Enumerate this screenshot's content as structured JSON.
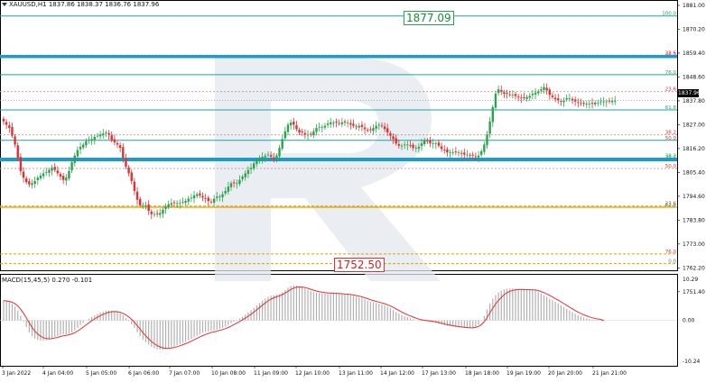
{
  "header": {
    "symbol_label": "XAUUSD,H1",
    "ohlc": "1837.86 1838.37 1836.76 1837.96"
  },
  "price_axis": {
    "ticks": [
      "1881.00",
      "1870.20",
      "1859.40",
      "1848.60",
      "1837.80",
      "1827.00",
      "1816.20",
      "1805.40",
      "1794.60",
      "1783.80",
      "1773.00",
      "1762.20",
      "1751.40"
    ],
    "current_price": "1837.96"
  },
  "macd": {
    "label": "MACD(15,45,5) 0.270 -0.101",
    "ticks": [
      "10.29",
      "0.00",
      "-10.24"
    ]
  },
  "time_axis": {
    "labels": [
      "3 Jan 2022",
      "4 Jan 04:00",
      "5 Jan 05:00",
      "6 Jan 06:00",
      "7 Jan 07:00",
      "10 Jan 08:00",
      "11 Jan 09:00",
      "12 Jan 10:00",
      "13 Jan 11:00",
      "14 Jan 12:00",
      "17 Jan 13:00",
      "18 Jan 18:00",
      "19 Jan 19:00",
      "20 Jan 20:00",
      "21 Jan 21:00"
    ]
  },
  "targets": {
    "up": "1877.09",
    "down": "1752.50"
  },
  "fib_levels": [
    {
      "label": "100.0",
      "color": "#2aa44a"
    },
    {
      "label": "23.6",
      "color": "#e03030"
    },
    {
      "label": "38.2",
      "color": "#e03030"
    },
    {
      "label": "76.0",
      "color": "#2aa44a"
    },
    {
      "label": "23.6",
      "color": "#e03030"
    },
    {
      "label": "61.8",
      "color": "#2aa44a"
    },
    {
      "label": "38.2",
      "color": "#e03030"
    },
    {
      "label": "50.0",
      "color": "#e03030"
    },
    {
      "label": "38.2",
      "color": "#2aa44a"
    },
    {
      "label": "38.2",
      "color": "#2aa44a"
    },
    {
      "label": "50.0",
      "color": "#e03030"
    },
    {
      "label": "23.6",
      "color": "#e03030"
    },
    {
      "label": "61.8",
      "color": "#2aa44a"
    },
    {
      "label": "76.0",
      "color": "#e03030"
    },
    {
      "label": "0.0",
      "color": "#2aa44a"
    }
  ],
  "colors": {
    "bull": "#2aa44a",
    "bear": "#e03030",
    "teal_line": "#1aa5a5",
    "blue_band": "#1c9ad6",
    "orange": "#e0a000",
    "macd_hist": "#b0b0b0",
    "macd_signal": "#e03030"
  },
  "chart_data": [
    {
      "type": "candlestick",
      "title": "XAUUSD,H1",
      "ylim": [
        1747,
        1886
      ],
      "y_ticks": [
        1881.0,
        1870.2,
        1859.4,
        1848.6,
        1837.8,
        1827.0,
        1816.2,
        1805.4,
        1794.6,
        1783.8,
        1773.0,
        1762.2,
        1751.4
      ],
      "close": [
        1828.5,
        1827,
        1825.5,
        1822,
        1818,
        1812,
        1806,
        1803,
        1801,
        1800,
        1800.5,
        1801.5,
        1803,
        1804,
        1805,
        1805.5,
        1806.5,
        1807.5,
        1806.5,
        1805,
        1803.5,
        1802,
        1803,
        1806,
        1810,
        1813,
        1815.5,
        1817,
        1818,
        1819.5,
        1820,
        1820.5,
        1821.5,
        1822,
        1822.5,
        1823,
        1823.5,
        1822.5,
        1820,
        1819,
        1818,
        1816.5,
        1812,
        1808,
        1805,
        1801.5,
        1797,
        1793,
        1790.5,
        1790.5,
        1790.5,
        1788,
        1786.5,
        1786.5,
        1786.5,
        1787,
        1788.5,
        1790,
        1791,
        1791.5,
        1791.5,
        1791.5,
        1791.5,
        1792,
        1792.5,
        1793.5,
        1794,
        1795,
        1795.5,
        1795,
        1794,
        1793.5,
        1792.5,
        1792,
        1793.5,
        1794.5,
        1794.5,
        1795.5,
        1797,
        1799,
        1800.5,
        1800.5,
        1800.5,
        1802,
        1803.5,
        1805,
        1806.5,
        1807.5,
        1809.5,
        1810.5,
        1811.5,
        1812.5,
        1813,
        1813.5,
        1812.5,
        1811.5,
        1813,
        1816.5,
        1820.5,
        1824,
        1827,
        1828,
        1827,
        1825,
        1823.5,
        1823.5,
        1822.5,
        1822.5,
        1822.5,
        1824,
        1825.5,
        1826,
        1826,
        1826.5,
        1827.5,
        1828,
        1828,
        1828,
        1827.5,
        1828,
        1828,
        1828,
        1827,
        1826.5,
        1826,
        1826.5,
        1826,
        1825,
        1824.5,
        1824.5,
        1825.5,
        1826.5,
        1827,
        1826.5,
        1825,
        1823.5,
        1822,
        1820.5,
        1818.5,
        1817.5,
        1817.5,
        1818,
        1818,
        1817.5,
        1816.5,
        1816.5,
        1817,
        1818.5,
        1820,
        1819.5,
        1818.5,
        1818.5,
        1818.5,
        1817.5,
        1816,
        1815.5,
        1814.5,
        1814.5,
        1814.5,
        1814.5,
        1814.5,
        1814,
        1813.5,
        1813.5,
        1813,
        1813,
        1812.5,
        1813,
        1815,
        1818,
        1822.5,
        1828.5,
        1835,
        1841,
        1843,
        1842,
        1841,
        1841,
        1840.5,
        1840.5,
        1840,
        1839.5,
        1839,
        1839,
        1839.5,
        1840,
        1841,
        1841.5,
        1842,
        1843,
        1844,
        1842.5,
        1840.5,
        1839.5,
        1838.5,
        1838,
        1837.5,
        1838,
        1839,
        1839,
        1838,
        1837.5,
        1837,
        1836.5,
        1836.5,
        1836.5,
        1836.5,
        1836.5,
        1837,
        1837,
        1837.5,
        1837.5,
        1837.5,
        1837.5,
        1837.8,
        1837.96
      ]
    },
    {
      "type": "bar",
      "title": "MACD(15,45,5) 0.270 -0.101",
      "ylim": [
        -10.24,
        10.29
      ],
      "y_ticks": [
        10.29,
        0.0,
        -10.24
      ],
      "histogram": [
        5.02,
        4.78,
        4.55,
        4.1,
        3.45,
        2.49,
        1.15,
        -0.25,
        -1.66,
        -3.01,
        -3.98,
        -4.55,
        -4.9,
        -5.07,
        -5.09,
        -4.99,
        -4.77,
        -4.47,
        -4.13,
        -3.86,
        -3.63,
        -3.49,
        -3.48,
        -3.35,
        -2.98,
        -2.48,
        -1.87,
        -1.23,
        -0.61,
        -0.04,
        0.47,
        0.91,
        1.3,
        1.64,
        1.93,
        2.18,
        2.4,
        2.49,
        2.44,
        2.28,
        2.06,
        1.76,
        1.27,
        0.59,
        -0.16,
        -0.97,
        -1.92,
        -2.97,
        -3.98,
        -4.83,
        -5.49,
        -6.09,
        -6.6,
        -6.97,
        -7.21,
        -7.34,
        -7.33,
        -7.21,
        -7.01,
        -6.76,
        -6.48,
        -6.19,
        -5.9,
        -5.6,
        -5.29,
        -4.95,
        -4.59,
        -4.2,
        -3.8,
        -3.44,
        -3.14,
        -2.92,
        -2.77,
        -2.67,
        -2.52,
        -2.31,
        -2.12,
        -1.89,
        -1.59,
        -1.19,
        -0.72,
        -0.29,
        0.08,
        0.49,
        0.94,
        1.44,
        1.98,
        2.54,
        3.16,
        3.77,
        4.37,
        4.95,
        5.47,
        5.93,
        6.22,
        6.34,
        6.41,
        6.62,
        7.05,
        7.6,
        8.19,
        8.62,
        8.8,
        8.73,
        8.53,
        8.29,
        7.97,
        7.64,
        7.3,
        7.07,
        6.96,
        6.88,
        6.8,
        6.74,
        6.73,
        6.74,
        6.73,
        6.7,
        6.62,
        6.57,
        6.52,
        6.46,
        6.31,
        6.13,
        5.92,
        5.73,
        5.52,
        5.25,
        4.95,
        4.69,
        4.51,
        4.37,
        4.21,
        4.0,
        3.73,
        3.4,
        3.01,
        2.58,
        2.11,
        1.69,
        1.33,
        1.05,
        0.8,
        0.53,
        0.24,
        -0.0,
        -0.15,
        -0.2,
        -0.22,
        -0.25,
        -0.32,
        -0.46,
        -0.66,
        -0.86,
        -1.06,
        -1.23,
        -1.37,
        -1.49,
        -1.59,
        -1.68,
        -1.75,
        -1.83,
        -1.89,
        -1.95,
        -1.97,
        -1.87,
        -1.57,
        -1.02,
        -0.13,
        1.14,
        2.73,
        4.27,
        5.5,
        6.38,
        7.02,
        7.46,
        7.74,
        7.91,
        7.98,
        7.98,
        7.93,
        7.85,
        7.78,
        7.73,
        7.68,
        7.65,
        7.64,
        7.49,
        7.16,
        6.77,
        6.34,
        5.9,
        5.45,
        5.02,
        4.64,
        4.24,
        3.79,
        3.33,
        2.88,
        2.45,
        2.03,
        1.64,
        1.29,
        0.99,
        0.74,
        0.53,
        0.36,
        0.23,
        0.13,
        0.06,
        0.02,
        0.27
      ],
      "signal": [
        4.95,
        4.87,
        4.75,
        4.53,
        4.17,
        3.6,
        2.78,
        1.77,
        0.62,
        -0.59,
        -1.73,
        -2.68,
        -3.42,
        -3.97,
        -4.34,
        -4.56,
        -4.63,
        -4.58,
        -4.43,
        -4.24,
        -4.04,
        -3.86,
        -3.73,
        -3.6,
        -3.39,
        -3.09,
        -2.68,
        -2.2,
        -1.67,
        -1.13,
        -0.6,
        -0.1,
        0.37,
        0.79,
        1.17,
        1.51,
        1.81,
        2.04,
        2.17,
        2.21,
        2.16,
        2.03,
        1.77,
        1.38,
        0.86,
        0.25,
        -0.47,
        -1.3,
        -2.19,
        -3.07,
        -3.88,
        -4.62,
        -5.28,
        -5.84,
        -6.3,
        -6.65,
        -6.87,
        -6.99,
        -7.0,
        -6.92,
        -6.77,
        -6.58,
        -6.35,
        -6.1,
        -5.83,
        -5.54,
        -5.22,
        -4.88,
        -4.52,
        -4.16,
        -3.82,
        -3.52,
        -3.27,
        -3.07,
        -2.89,
        -2.7,
        -2.51,
        -2.3,
        -2.07,
        -1.78,
        -1.43,
        -1.05,
        -0.67,
        -0.28,
        0.12,
        0.56,
        1.03,
        1.53,
        2.07,
        2.64,
        3.22,
        3.8,
        4.36,
        4.88,
        5.33,
        5.67,
        5.92,
        6.15,
        6.45,
        6.83,
        7.28,
        7.73,
        8.09,
        8.3,
        8.38,
        8.35,
        8.22,
        8.03,
        7.79,
        7.55,
        7.35,
        7.19,
        7.06,
        6.95,
        6.88,
        6.83,
        6.8,
        6.77,
        6.72,
        6.67,
        6.62,
        6.57,
        6.48,
        6.37,
        6.22,
        6.06,
        5.88,
        5.67,
        5.43,
        5.18,
        4.96,
        4.76,
        4.58,
        4.39,
        4.17,
        3.91,
        3.61,
        3.27,
        2.88,
        2.48,
        2.1,
        1.75,
        1.43,
        1.13,
        0.83,
        0.56,
        0.31,
        0.14,
        0.02,
        -0.07,
        -0.15,
        -0.25,
        -0.39,
        -0.55,
        -0.72,
        -0.89,
        -1.05,
        -1.2,
        -1.33,
        -1.45,
        -1.55,
        -1.64,
        -1.72,
        -1.8,
        -1.85,
        -1.86,
        -1.76,
        -1.51,
        -1.05,
        -0.32,
        0.7,
        1.89,
        3.02,
        4.09,
        5.0,
        5.78,
        6.43,
        6.92,
        7.26,
        7.49,
        7.64,
        7.71,
        7.73,
        7.71,
        7.69,
        7.67,
        7.66,
        7.61,
        7.46,
        7.23,
        6.94,
        6.61,
        6.25,
        5.86,
        5.47,
        5.07,
        4.64,
        4.2,
        3.76,
        3.32,
        2.89,
        2.47,
        2.08,
        1.73,
        1.41,
        1.12,
        0.87,
        0.66,
        0.48,
        0.34,
        0.24,
        -0.101
      ]
    }
  ]
}
